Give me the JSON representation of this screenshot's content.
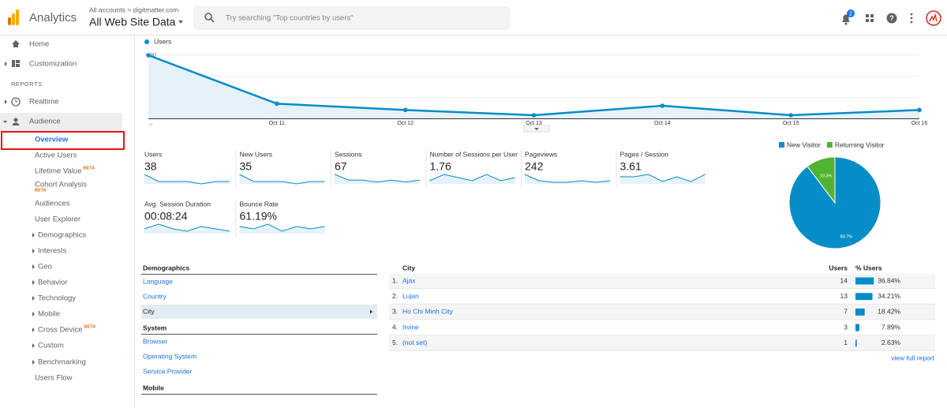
{
  "header": {
    "app_name": "Analytics",
    "account_path": "All accounts > digitmatter.com",
    "view_name": "All Web Site Data",
    "search_placeholder": "Try searching \"Top countries by users\"",
    "notification_count": "2"
  },
  "sidebar": {
    "items": [
      {
        "label": "Home"
      },
      {
        "label": "Customization"
      },
      {
        "label": "REPORTS"
      },
      {
        "label": "Realtime"
      },
      {
        "label": "Audience"
      },
      {
        "label": "Overview"
      },
      {
        "label": "Active Users"
      },
      {
        "label": "Lifetime Value",
        "badge": "BETA"
      },
      {
        "label": "Cohort Analysis",
        "badge": "BETA"
      },
      {
        "label": "Audiences"
      },
      {
        "label": "User Explorer"
      },
      {
        "label": "Demographics"
      },
      {
        "label": "Interests"
      },
      {
        "label": "Geo"
      },
      {
        "label": "Behavior"
      },
      {
        "label": "Technology"
      },
      {
        "label": "Mobile"
      },
      {
        "label": "Cross Device",
        "badge": "BETA"
      },
      {
        "label": "Custom"
      },
      {
        "label": "Benchmarking"
      },
      {
        "label": "Users Flow"
      }
    ]
  },
  "users_chart": {
    "legend": "Users",
    "color": "#058dc7",
    "x": [
      "...",
      "Oct 11",
      "Oct 12",
      "Oct 13",
      "Oct 14",
      "Oct 15",
      "Oct 16"
    ],
    "values": [
      30,
      7,
      4,
      1.5,
      6,
      1.5,
      4
    ],
    "ylim": [
      0,
      33
    ],
    "yticks": [
      10,
      20,
      30
    ]
  },
  "scorecards": [
    {
      "label": "Users",
      "value": "38",
      "spark": [
        4,
        1,
        1,
        1,
        0,
        1,
        1
      ]
    },
    {
      "label": "New Users",
      "value": "35",
      "spark": [
        4,
        1,
        1,
        1,
        0,
        1,
        1
      ]
    },
    {
      "label": "Sessions",
      "value": "67",
      "spark": [
        5,
        2,
        2,
        1,
        2,
        1,
        2
      ]
    },
    {
      "label": "Number of Sessions per User",
      "value": "1.76",
      "spark": [
        1,
        3,
        2,
        1,
        3,
        1,
        2
      ]
    },
    {
      "label": "Pageviews",
      "value": "242",
      "spark": [
        6,
        2,
        1,
        1,
        2,
        1,
        2
      ]
    },
    {
      "label": "Pages / Session",
      "value": "3.61",
      "spark": [
        3,
        3,
        4,
        1,
        3,
        1,
        4
      ]
    },
    {
      "label": "Avg. Session Duration",
      "value": "00:08:24",
      "spark": [
        2,
        4,
        2,
        1,
        3,
        2,
        1
      ]
    },
    {
      "label": "Bounce Rate",
      "value": "61.19%",
      "spark": [
        3,
        2,
        4,
        1,
        3,
        2,
        3
      ]
    }
  ],
  "pie": {
    "slices": [
      {
        "name": "New Visitor",
        "value": 89.7,
        "label": "89.7%",
        "color": "#058dc7"
      },
      {
        "name": "Returning Visitor",
        "value": 10.3,
        "label": "10.3%",
        "color": "#50b432"
      }
    ]
  },
  "demographics_nav": {
    "selected_group": 0,
    "selected_item": 2,
    "groups": [
      {
        "title": "Demographics",
        "items": [
          "Language",
          "Country",
          "City"
        ]
      },
      {
        "title": "System",
        "items": [
          "Browser",
          "Operating System",
          "Service Provider"
        ]
      },
      {
        "title": "Mobile",
        "items": []
      }
    ]
  },
  "city_table": {
    "headers": [
      "City",
      "Users",
      "% Users"
    ],
    "rows": [
      {
        "rank": "1.",
        "city": "Ajax",
        "users": 14,
        "percent": {
          "value": 36.84,
          "label": "36.84%"
        }
      },
      {
        "rank": "2.",
        "city": "Lujan",
        "users": 13,
        "percent": {
          "value": 34.21,
          "label": "34.21%"
        }
      },
      {
        "rank": "3.",
        "city": "Ho Chi Minh City",
        "users": 7,
        "percent": {
          "value": 18.42,
          "label": "18.42%"
        }
      },
      {
        "rank": "4.",
        "city": "Irvine",
        "users": 3,
        "percent": {
          "value": 7.89,
          "label": "7.89%"
        }
      },
      {
        "rank": "5.",
        "city": "(not set)",
        "users": 1,
        "percent": {
          "value": 2.63,
          "label": "2.63%"
        }
      }
    ],
    "footer_link": "view full report"
  }
}
